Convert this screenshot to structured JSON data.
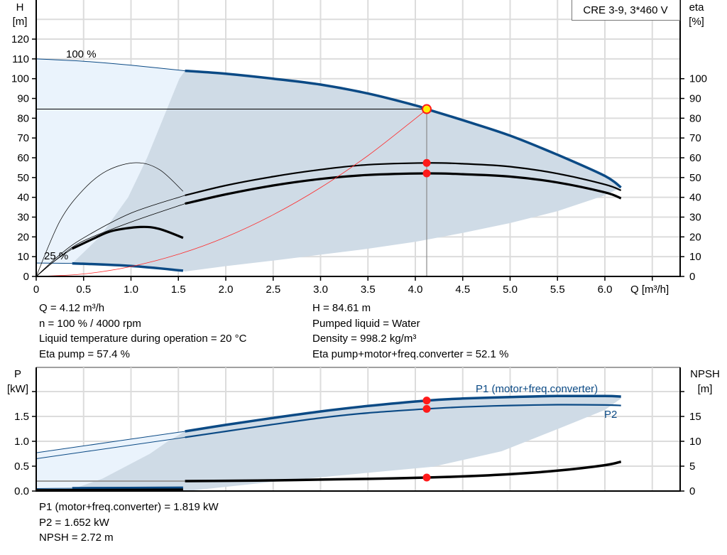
{
  "chart_data": [
    {
      "type": "line",
      "title": "CRE 3-9, 3*460 V",
      "xlabel": "Q [m³/h]",
      "ylabel": [
        "H",
        "[m]"
      ],
      "y2label": [
        "eta",
        "[%]"
      ],
      "xlim": [
        0,
        6.8
      ],
      "ylim": [
        0,
        139
      ],
      "y2lim": [
        0,
        139
      ],
      "grid": true,
      "x_ticks": [
        "0",
        "0.5",
        "1.0",
        "1.5",
        "2.0",
        "2.5",
        "3.0",
        "3.5",
        "4.0",
        "4.5",
        "5.0",
        "5.5",
        "6.0"
      ],
      "y_ticks": [
        "0",
        "10",
        "20",
        "30",
        "40",
        "50",
        "60",
        "70",
        "80",
        "90",
        "100",
        "110",
        "120"
      ],
      "y2_ticks": [
        "0",
        "10",
        "20",
        "30",
        "40",
        "50",
        "60",
        "70",
        "80",
        "90",
        "100"
      ],
      "annotations": [
        "100 %",
        "25 %"
      ],
      "colors": {
        "head": "#0b4a85",
        "eta": "#000000",
        "system": "#ff2a2a",
        "area": "#cfdbe6",
        "area_light": "#eaf3fc",
        "point": "#ff1a1a",
        "duty_fill": "#ffee00"
      },
      "series": [
        {
          "name": "100 %",
          "kind": "head",
          "thin": [
            [
              0,
              110
            ],
            [
              0.5,
              108.8
            ],
            [
              1,
              106.8
            ],
            [
              1.57,
              104
            ]
          ],
          "values": [
            [
              1.57,
              104
            ],
            [
              2,
              102.5
            ],
            [
              2.5,
              100
            ],
            [
              3,
              97
            ],
            [
              3.5,
              92.5
            ],
            [
              4,
              86.5
            ],
            [
              4.12,
              84.6
            ],
            [
              4.5,
              79
            ],
            [
              5,
              71.2
            ],
            [
              5.5,
              61.5
            ],
            [
              6,
              50.8
            ],
            [
              6.17,
              45
            ]
          ]
        },
        {
          "name": "25 %",
          "kind": "head",
          "thin": [
            [
              0,
              6.8
            ],
            [
              0.38,
              6.6
            ]
          ],
          "values": [
            [
              0.38,
              6.6
            ],
            [
              1,
              5.3
            ],
            [
              1.55,
              2.9
            ]
          ]
        },
        {
          "kind": "eta-pump",
          "thin": [
            [
              0,
              0
            ],
            [
              0.25,
              11
            ],
            [
              0.5,
              19.5
            ],
            [
              1,
              32
            ],
            [
              1.57,
              41
            ]
          ],
          "values": [
            [
              1.57,
              41
            ],
            [
              2,
              46
            ],
            [
              2.5,
              50.5
            ],
            [
              3,
              54
            ],
            [
              3.5,
              56.5
            ],
            [
              4.12,
              57.4
            ],
            [
              4.5,
              57
            ],
            [
              5,
              55.5
            ],
            [
              5.5,
              52
            ],
            [
              6,
              46.5
            ],
            [
              6.17,
              43.5
            ]
          ]
        },
        {
          "kind": "eta-total",
          "thin": [
            [
              0,
              0
            ],
            [
              0.25,
              10
            ],
            [
              0.5,
              18
            ],
            [
              1,
              27.5
            ],
            [
              1.57,
              36.8
            ]
          ],
          "values": [
            [
              1.57,
              36.8
            ],
            [
              2,
              41.5
            ],
            [
              2.5,
              46
            ],
            [
              3,
              49.3
            ],
            [
              3.5,
              51.3
            ],
            [
              4.12,
              52.1
            ],
            [
              4.5,
              51.7
            ],
            [
              5,
              50.5
            ],
            [
              5.5,
              47.5
            ],
            [
              6,
              42.5
            ],
            [
              6.17,
              39.5
            ]
          ]
        },
        {
          "kind": "eta-pump-low-speed",
          "thin": [
            [
              0,
              0
            ],
            [
              0.25,
              28
            ],
            [
              0.5,
              44
            ],
            [
              0.75,
              53.5
            ],
            [
              1.05,
              57.5
            ],
            [
              1.3,
              54
            ],
            [
              1.55,
              43
            ]
          ],
          "values": []
        },
        {
          "kind": "eta-total-low-speed",
          "thin": [
            [
              0,
              0
            ],
            [
              0.2,
              8
            ],
            [
              0.38,
              14
            ]
          ],
          "values": [
            [
              0.38,
              14
            ],
            [
              0.6,
              19
            ],
            [
              0.8,
              23
            ],
            [
              1.1,
              25
            ],
            [
              1.3,
              24
            ],
            [
              1.55,
              19.5
            ]
          ]
        },
        {
          "kind": "system",
          "thin": [],
          "values": [
            [
              0,
              0
            ],
            [
              0.5,
              1.25
            ],
            [
              1,
              5
            ],
            [
              1.5,
              11.2
            ],
            [
              2,
              19.9
            ],
            [
              2.5,
              31.2
            ],
            [
              3,
              44.9
            ],
            [
              3.5,
              61.1
            ],
            [
              4,
              79.8
            ],
            [
              4.12,
              84.6
            ]
          ]
        }
      ],
      "operating_area": {
        "bottom": [
          [
            6.17,
            45
          ],
          [
            6,
            41
          ],
          [
            5.5,
            33
          ],
          [
            5,
            27
          ],
          [
            4.5,
            22
          ],
          [
            4,
            17.5
          ],
          [
            3.5,
            14
          ],
          [
            3,
            11
          ],
          [
            2.5,
            8
          ],
          [
            2,
            5.2
          ],
          [
            1.57,
            2.5
          ]
        ],
        "left": [
          [
            0.38,
            6.6
          ],
          [
            0.67,
            20
          ],
          [
            0.97,
            40
          ],
          [
            1.17,
            60
          ],
          [
            1.34,
            80
          ],
          [
            1.51,
            100
          ],
          [
            1.57,
            104
          ]
        ]
      },
      "duty_point": {
        "Q": 4.12,
        "H": 84.61,
        "eta_pump": 57.4,
        "eta_total": 52.1
      }
    },
    {
      "type": "line",
      "ylabel": [
        "P",
        "[kW]"
      ],
      "y2label": [
        "NPSH",
        "[m]"
      ],
      "xlim": [
        0,
        6.8
      ],
      "ylim": [
        0,
        2.49
      ],
      "y2lim": [
        0,
        24.9
      ],
      "grid": true,
      "y_ticks": [
        "0.0",
        "0.5",
        "1.0",
        "1.5"
      ],
      "y2_ticks": [
        "0",
        "5",
        "10",
        "15"
      ],
      "series": [
        {
          "name": "P1 (motor+freq.converter)",
          "kind": "p1",
          "thin": [
            [
              0,
              0.77
            ],
            [
              1.57,
              1.2
            ]
          ],
          "values": [
            [
              1.57,
              1.2
            ],
            [
              2,
              1.33
            ],
            [
              2.5,
              1.47
            ],
            [
              3,
              1.6
            ],
            [
              3.5,
              1.71
            ],
            [
              4.12,
              1.819
            ],
            [
              4.5,
              1.86
            ],
            [
              5,
              1.89
            ],
            [
              5.5,
              1.91
            ],
            [
              6,
              1.91
            ],
            [
              6.17,
              1.9
            ]
          ]
        },
        {
          "name": "P2",
          "kind": "p2",
          "thin": [
            [
              0,
              0.65
            ],
            [
              1.57,
              1.08
            ]
          ],
          "values": [
            [
              1.57,
              1.08
            ],
            [
              2,
              1.2
            ],
            [
              2.5,
              1.34
            ],
            [
              3,
              1.47
            ],
            [
              3.5,
              1.57
            ],
            [
              4.12,
              1.652
            ],
            [
              4.5,
              1.69
            ],
            [
              5,
              1.72
            ],
            [
              5.5,
              1.735
            ],
            [
              6,
              1.73
            ],
            [
              6.17,
              1.72
            ]
          ]
        },
        {
          "kind": "npsh",
          "thin": [
            [
              0,
              2
            ],
            [
              1.57,
              2
            ]
          ],
          "values": [
            [
              1.57,
              2
            ],
            [
              2,
              2.05
            ],
            [
              2.5,
              2.15
            ],
            [
              3,
              2.3
            ],
            [
              3.5,
              2.45
            ],
            [
              4.12,
              2.72
            ],
            [
              4.5,
              2.95
            ],
            [
              5,
              3.4
            ],
            [
              5.5,
              4.1
            ],
            [
              6,
              5.2
            ],
            [
              6.17,
              5.9
            ]
          ]
        },
        {
          "kind": "p1-low-speed",
          "thin": [
            [
              0,
              0.05
            ],
            [
              0.38,
              0.055
            ]
          ],
          "values": [
            [
              0.38,
              0.06
            ],
            [
              1.55,
              0.07
            ]
          ]
        },
        {
          "kind": "p2-low-speed",
          "thin": [],
          "values": [
            [
              0,
              0.02
            ],
            [
              1.55,
              0.03
            ]
          ]
        }
      ],
      "operating_area": {
        "bottom": [
          [
            6.17,
            1.86
          ],
          [
            6,
            1.63
          ],
          [
            5.52,
            1.26
          ],
          [
            4.91,
            0.8
          ],
          [
            4.19,
            0.49
          ],
          [
            2.57,
            0.2
          ],
          [
            1.59,
            0.0
          ],
          [
            0.4,
            0.03
          ]
        ],
        "left": [
          [
            0.4,
            0.05
          ],
          [
            0.7,
            0.25
          ],
          [
            0.95,
            0.5
          ],
          [
            1.2,
            0.75
          ],
          [
            1.39,
            1.0
          ],
          [
            1.57,
            1.2
          ]
        ]
      },
      "duty_point": {
        "Q": 4.12,
        "P1": 1.819,
        "P2": 1.652,
        "NPSH": 2.72
      }
    }
  ],
  "info_top": {
    "left": [
      "Q = 4.12 m³/h",
      "n = 100 % / 4000 rpm",
      "Liquid temperature during operation = 20 °C",
      "Eta pump = 57.4 %"
    ],
    "right": [
      "H = 84.61 m",
      "Pumped liquid = Water",
      "Density = 998.2 kg/m³",
      "Eta pump+motor+freq.converter = 52.1 %"
    ]
  },
  "info_bottom": [
    "P1 (motor+freq.converter) = 1.819 kW",
    "P2 = 1.652 kW",
    "NPSH = 2.72 m"
  ]
}
